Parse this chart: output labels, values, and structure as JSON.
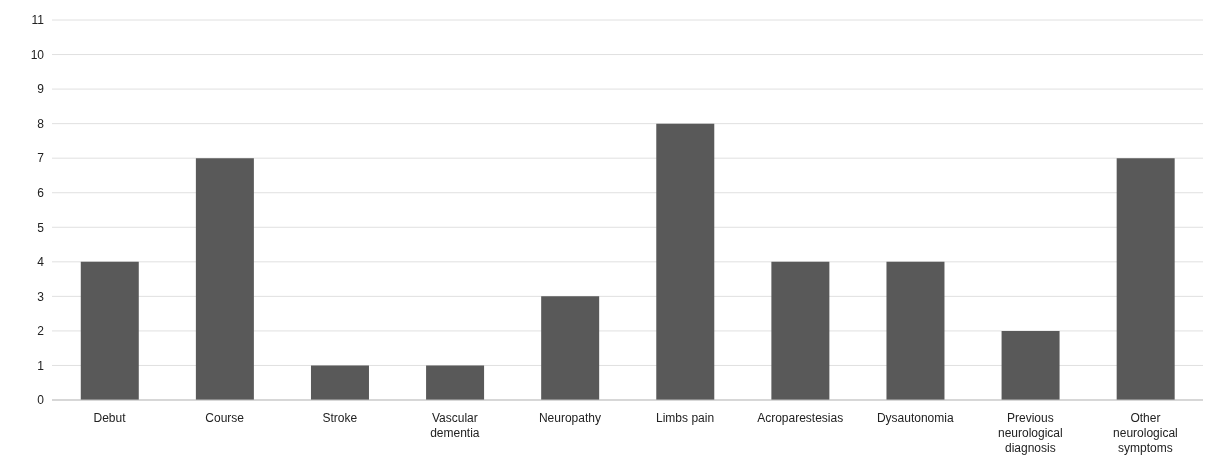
{
  "chart_data": {
    "type": "bar",
    "categories": [
      "Debut",
      "Course",
      "Stroke",
      "Vascular dementia",
      "Neuropathy",
      "Limbs pain",
      "Acroparestesias",
      "Dysautonomia",
      "Previous neurological diagnosis",
      "Other neurological symptoms"
    ],
    "values": [
      4,
      7,
      1,
      1,
      3,
      8,
      4,
      4,
      2,
      7
    ],
    "color": "#595959",
    "ylim": [
      0,
      11
    ],
    "yticks": [
      0,
      1,
      2,
      3,
      4,
      5,
      6,
      7,
      8,
      9,
      10,
      11
    ],
    "grid": "y"
  }
}
